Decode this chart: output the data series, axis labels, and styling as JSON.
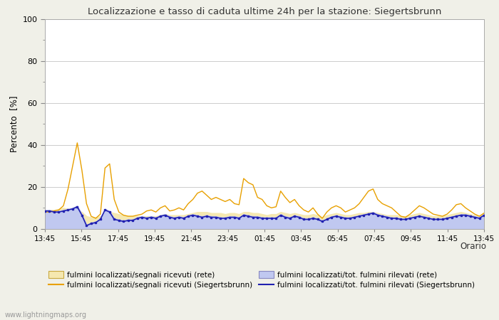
{
  "title": "Localizzazione e tasso di caduta ultime 24h per la stazione: Siegertsbrunn",
  "ylabel": "Percento  [%]",
  "xlabel": "Orario",
  "watermark": "www.lightningmaps.org",
  "ylim": [
    0,
    100
  ],
  "x_labels": [
    "13:45",
    "15:45",
    "17:45",
    "19:45",
    "21:45",
    "23:45",
    "01:45",
    "03:45",
    "05:45",
    "07:45",
    "09:45",
    "11:45",
    "13:45"
  ],
  "background_color": "#f0f0e8",
  "plot_bg_color": "#ffffff",
  "orange_line": [
    8.0,
    8.0,
    8.5,
    9.0,
    11.0,
    19.0,
    30.0,
    41.0,
    28.0,
    12.0,
    6.0,
    5.0,
    7.0,
    29.0,
    31.0,
    14.0,
    8.0,
    6.5,
    6.0,
    6.0,
    6.5,
    7.0,
    8.5,
    9.0,
    8.0,
    10.0,
    11.0,
    8.5,
    9.0,
    10.0,
    9.0,
    12.0,
    14.0,
    17.0,
    18.0,
    16.0,
    14.0,
    15.0,
    14.0,
    13.0,
    14.0,
    12.0,
    11.5,
    24.0,
    22.0,
    21.0,
    15.0,
    14.0,
    11.0,
    10.0,
    10.5,
    18.0,
    15.0,
    12.5,
    14.0,
    11.0,
    9.0,
    8.0,
    10.0,
    7.0,
    5.0,
    8.0,
    10.0,
    11.0,
    10.0,
    8.0,
    9.0,
    10.0,
    12.0,
    15.0,
    18.0,
    19.0,
    14.0,
    12.0,
    11.0,
    10.0,
    8.0,
    6.0,
    5.5,
    7.0,
    9.0,
    11.0,
    10.0,
    8.5,
    7.0,
    6.5,
    6.0,
    7.0,
    9.0,
    11.5,
    12.0,
    10.0,
    8.5,
    7.0,
    6.0,
    7.5
  ],
  "blue_line": [
    8.5,
    8.5,
    8.0,
    8.0,
    8.5,
    9.0,
    9.5,
    10.5,
    6.5,
    1.5,
    2.5,
    3.0,
    4.5,
    9.0,
    8.0,
    4.5,
    4.0,
    3.5,
    4.0,
    4.0,
    5.0,
    5.5,
    5.0,
    5.5,
    5.0,
    6.0,
    6.5,
    5.5,
    5.0,
    5.5,
    5.0,
    6.0,
    6.5,
    6.0,
    5.5,
    6.0,
    5.5,
    5.5,
    5.0,
    5.0,
    5.5,
    5.5,
    5.0,
    6.5,
    6.0,
    5.5,
    5.5,
    5.0,
    5.0,
    5.0,
    5.0,
    6.5,
    5.5,
    5.0,
    6.0,
    5.5,
    4.5,
    4.5,
    5.0,
    4.5,
    3.5,
    4.5,
    5.5,
    6.0,
    5.5,
    5.0,
    5.0,
    5.5,
    6.0,
    6.5,
    7.0,
    7.5,
    6.5,
    6.0,
    5.5,
    5.0,
    5.0,
    4.5,
    4.5,
    5.0,
    5.5,
    6.0,
    5.5,
    5.0,
    4.5,
    4.5,
    4.5,
    5.0,
    5.5,
    6.0,
    6.5,
    6.5,
    6.0,
    5.5,
    5.0,
    6.5
  ],
  "orange_fill_top": [
    9.0,
    9.0,
    9.0,
    9.5,
    10.0,
    9.5,
    9.0,
    9.0,
    8.0,
    6.0,
    5.5,
    5.5,
    6.0,
    7.5,
    8.0,
    7.5,
    7.0,
    6.5,
    6.0,
    6.0,
    6.0,
    6.0,
    6.0,
    6.0,
    6.0,
    6.5,
    7.0,
    6.5,
    6.5,
    6.5,
    6.5,
    7.0,
    7.5,
    8.0,
    8.0,
    8.0,
    7.5,
    7.5,
    7.5,
    7.0,
    7.5,
    7.5,
    7.0,
    8.0,
    8.0,
    7.5,
    7.5,
    7.0,
    6.5,
    7.0,
    7.0,
    8.0,
    7.5,
    7.0,
    7.5,
    7.0,
    6.5,
    6.5,
    7.0,
    6.5,
    5.5,
    6.5,
    7.0,
    7.5,
    7.0,
    6.5,
    6.5,
    7.0,
    7.5,
    7.5,
    8.0,
    8.0,
    7.5,
    7.0,
    6.5,
    6.5,
    6.5,
    6.0,
    6.0,
    6.5,
    7.0,
    7.5,
    7.0,
    6.5,
    6.0,
    6.0,
    6.0,
    6.5,
    7.0,
    7.5,
    8.0,
    7.5,
    7.0,
    6.5,
    6.0,
    7.5
  ],
  "blue_fill_top": [
    9.0,
    9.0,
    8.5,
    8.5,
    9.0,
    9.5,
    10.0,
    11.0,
    7.0,
    2.0,
    3.0,
    3.5,
    5.0,
    9.5,
    8.5,
    5.0,
    4.5,
    4.0,
    4.5,
    4.5,
    5.5,
    6.0,
    5.5,
    6.0,
    5.5,
    6.5,
    7.0,
    6.0,
    5.5,
    6.0,
    5.5,
    6.5,
    7.0,
    6.5,
    6.0,
    6.5,
    6.0,
    6.0,
    5.5,
    5.5,
    6.0,
    6.0,
    5.5,
    7.0,
    6.5,
    6.0,
    6.0,
    5.5,
    5.5,
    5.5,
    5.5,
    7.0,
    6.0,
    5.5,
    6.5,
    6.0,
    5.0,
    5.0,
    5.5,
    5.0,
    4.0,
    5.0,
    6.0,
    6.5,
    6.0,
    5.5,
    5.5,
    6.0,
    6.5,
    7.0,
    7.5,
    8.0,
    7.0,
    6.5,
    6.0,
    5.5,
    5.5,
    5.0,
    5.0,
    5.5,
    6.0,
    6.5,
    6.0,
    5.5,
    5.0,
    5.0,
    5.0,
    5.5,
    6.0,
    6.5,
    7.0,
    7.0,
    6.5,
    6.0,
    5.5,
    7.0
  ],
  "orange_fill_color": "#f5e8b0",
  "blue_fill_color": "#c0c8f0",
  "orange_line_color": "#e8a000",
  "blue_line_color": "#2020b0",
  "legend_labels": [
    "fulmini localizzati/segnali ricevuti (rete)",
    "fulmini localizzati/segnali ricevuti (Siegertsbrunn)",
    "fulmini localizzati/tot. fulmini rilevati (rete)",
    "fulmini localizzati/tot. fulmini rilevati (Siegertsbrunn)"
  ]
}
